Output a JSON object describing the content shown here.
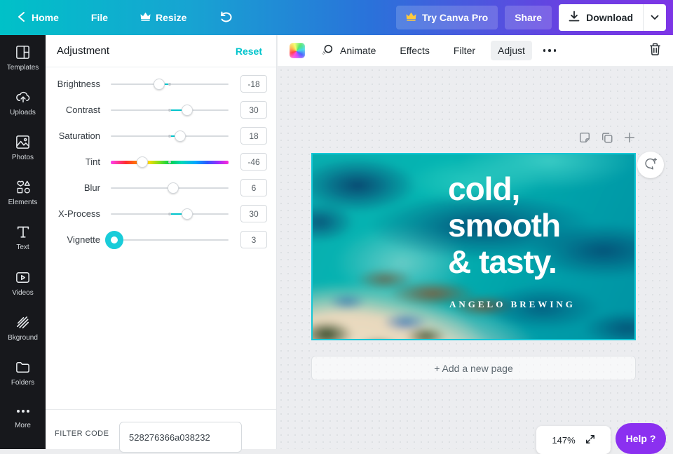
{
  "colors": {
    "accent": "#00c4cc",
    "active_handle": "#19ccd9",
    "help_purple": "#8b30f0",
    "selection_border": "#14c7d6",
    "crown_gold": "#ffc93d"
  },
  "topbar": {
    "home": "Home",
    "file": "File",
    "resize": "Resize",
    "try_pro": "Try Canva Pro",
    "share": "Share",
    "download": "Download"
  },
  "sidebar": {
    "items": [
      {
        "label": "Templates"
      },
      {
        "label": "Uploads"
      },
      {
        "label": "Photos"
      },
      {
        "label": "Elements"
      },
      {
        "label": "Text"
      },
      {
        "label": "Videos"
      },
      {
        "label": "Bkground"
      },
      {
        "label": "Folders"
      },
      {
        "label": "More"
      }
    ]
  },
  "panel": {
    "title": "Adjustment",
    "reset": "Reset",
    "sliders": [
      {
        "label": "Brightness",
        "value": -18,
        "min": -100,
        "max": 100,
        "origin": "center",
        "track": "plain",
        "active": false
      },
      {
        "label": "Contrast",
        "value": 30,
        "min": -100,
        "max": 100,
        "origin": "center",
        "track": "plain",
        "active": false
      },
      {
        "label": "Saturation",
        "value": 18,
        "min": -100,
        "max": 100,
        "origin": "center",
        "track": "plain",
        "active": false
      },
      {
        "label": "Tint",
        "value": -46,
        "min": -100,
        "max": 100,
        "origin": "center",
        "track": "hue",
        "active": false
      },
      {
        "label": "Blur",
        "value": 6,
        "min": -100,
        "max": 100,
        "origin": "center",
        "track": "plain",
        "active": false
      },
      {
        "label": "X-Process",
        "value": 30,
        "min": -100,
        "max": 100,
        "origin": "center",
        "track": "plain",
        "active": false
      },
      {
        "label": "Vignette",
        "value": 3,
        "min": 0,
        "max": 100,
        "origin": "left",
        "track": "plain",
        "active": true
      }
    ],
    "filter_code_label": "FILTER CODE",
    "filter_code_value": "528276366a038232"
  },
  "toolbar": {
    "animate": "Animate",
    "effects": "Effects",
    "filter": "Filter",
    "adjust": "Adjust"
  },
  "canvas": {
    "headline_lines": [
      "cold,",
      "smooth",
      "& tasty."
    ],
    "brand": "ANGELO BREWING"
  },
  "workspace": {
    "add_page": "+ Add a new page",
    "zoom_level": "147%",
    "help": "Help ?"
  }
}
